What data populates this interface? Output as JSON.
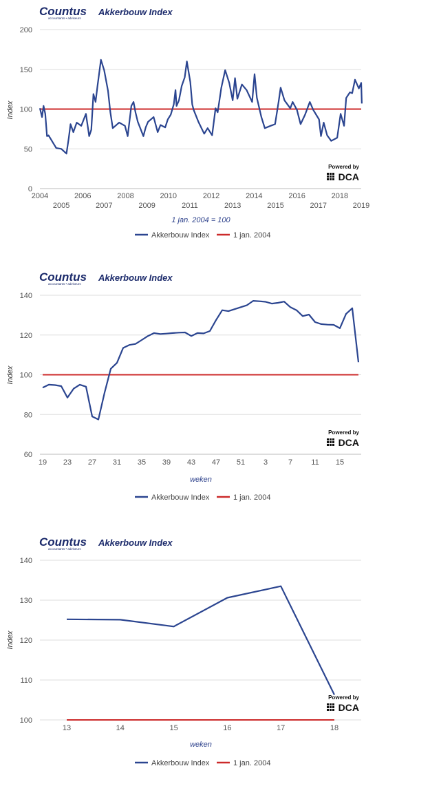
{
  "colors": {
    "series": "#2b4590",
    "baseline": "#cc2a2a",
    "grid": "#dedede",
    "brand": "#1b2a6b"
  },
  "brand": {
    "logo_text": "Countus",
    "logo_tagline": "accountants • adviseurs",
    "powered_by": "Powered by",
    "powered_logo": "DCA"
  },
  "chart_data": [
    {
      "type": "line",
      "title": "Akkerbouw Index",
      "ylabel": "Index",
      "xlabel": "",
      "note": "1 jan. 2004 = 100",
      "ylim": [
        0,
        200
      ],
      "yticks": [
        "0",
        "50",
        "100",
        "150",
        "200"
      ],
      "ytick_values": [
        0,
        50,
        100,
        150,
        200
      ],
      "xlim": [
        2004,
        2019
      ],
      "xticks": [
        "2004",
        "2005",
        "2006",
        "2007",
        "2008",
        "2009",
        "2010",
        "2011",
        "2012",
        "2013",
        "2014",
        "2015",
        "2016",
        "2017",
        "2018",
        "2019"
      ],
      "legend": [
        "Akkerbouw Index",
        "1 jan. 2004"
      ],
      "legend_position": "bottom",
      "baseline": 100,
      "series": [
        {
          "name": "Akkerbouw Index",
          "x": [
            2004.0,
            2004.1,
            2004.17,
            2004.25,
            2004.33,
            2004.4,
            2004.76,
            2005.0,
            2005.24,
            2005.35,
            2005.43,
            2005.56,
            2005.72,
            2005.93,
            2006.15,
            2006.3,
            2006.4,
            2006.5,
            2006.6,
            2006.69,
            2006.85,
            2007.0,
            2007.18,
            2007.29,
            2007.4,
            2007.7,
            2007.97,
            2008.1,
            2008.27,
            2008.37,
            2008.46,
            2008.57,
            2008.83,
            2008.94,
            2009.05,
            2009.31,
            2009.5,
            2009.63,
            2009.85,
            2009.97,
            2010.11,
            2010.25,
            2010.33,
            2010.38,
            2010.49,
            2010.62,
            2010.76,
            2010.86,
            2011.02,
            2011.11,
            2011.18,
            2011.4,
            2011.67,
            2011.83,
            2012.04,
            2012.2,
            2012.3,
            2012.47,
            2012.65,
            2012.84,
            2013.0,
            2013.11,
            2013.22,
            2013.43,
            2013.65,
            2013.91,
            2014.02,
            2014.13,
            2014.34,
            2014.5,
            2014.77,
            2014.98,
            2015.15,
            2015.24,
            2015.42,
            2015.69,
            2015.8,
            2016.0,
            2016.17,
            2016.38,
            2016.6,
            2016.76,
            2017.03,
            2017.12,
            2017.25,
            2017.41,
            2017.6,
            2017.88,
            2018.04,
            2018.2,
            2018.3,
            2018.47,
            2018.58,
            2018.71,
            2018.89,
            2019.0,
            2019.03
          ],
          "values": [
            101,
            90,
            104,
            94,
            66,
            67,
            51,
            50,
            44,
            64,
            81,
            71,
            83,
            79,
            94,
            66,
            74,
            119,
            109,
            129,
            162,
            149,
            123,
            96,
            76,
            83,
            79,
            66,
            104,
            109,
            96,
            84,
            66,
            77,
            84,
            90,
            71,
            80,
            77,
            87,
            93,
            106,
            124,
            104,
            111,
            129,
            140,
            160,
            134,
            106,
            99,
            84,
            69,
            76,
            67,
            101,
            96,
            127,
            149,
            133,
            111,
            139,
            113,
            131,
            124,
            109,
            144,
            114,
            90,
            76,
            79,
            81,
            110,
            127,
            111,
            101,
            109,
            99,
            81,
            93,
            109,
            99,
            87,
            66,
            83,
            67,
            60,
            64,
            94,
            79,
            114,
            121,
            120,
            137,
            126,
            133,
            107
          ]
        }
      ]
    },
    {
      "type": "line",
      "title": "Akkerbouw Index",
      "ylabel": "Index",
      "xlabel": "weken",
      "ylim": [
        60,
        140
      ],
      "yticks": [
        "60",
        "80",
        "100",
        "120",
        "140"
      ],
      "ytick_values": [
        60,
        80,
        100,
        120,
        140
      ],
      "xticks": [
        "19",
        "23",
        "27",
        "31",
        "35",
        "39",
        "43",
        "47",
        "51",
        "3",
        "7",
        "11",
        "15"
      ],
      "legend": [
        "Akkerbouw Index",
        "1 jan. 2004"
      ],
      "legend_position": "bottom",
      "baseline": 100,
      "categories": [
        "19",
        "20",
        "21",
        "22",
        "23",
        "24",
        "25",
        "26",
        "27",
        "28",
        "29",
        "30",
        "31",
        "32",
        "33",
        "34",
        "35",
        "36",
        "37",
        "38",
        "39",
        "40",
        "41",
        "42",
        "43",
        "44",
        "45",
        "46",
        "47",
        "48",
        "49",
        "50",
        "51",
        "52",
        "1",
        "2",
        "3",
        "4",
        "5",
        "6",
        "7",
        "8",
        "9",
        "10",
        "11",
        "12",
        "13",
        "14",
        "15",
        "16",
        "17",
        "18"
      ],
      "series": [
        {
          "name": "Akkerbouw Index",
          "values": [
            93.5,
            95,
            94.8,
            94.3,
            88.5,
            93,
            95,
            94,
            79,
            77.5,
            91,
            103,
            106,
            113.5,
            115,
            115.5,
            117.5,
            119.5,
            121,
            120.5,
            120.7,
            121,
            121.2,
            121.3,
            119.5,
            121,
            120.8,
            122,
            127.5,
            132.5,
            132,
            133,
            134,
            135,
            137.2,
            137,
            136.7,
            135.8,
            136.2,
            136.8,
            134,
            132.5,
            129.5,
            130.3,
            126.5,
            125.5,
            125.2,
            125.1,
            123.4,
            130.6,
            133.5,
            106.3
          ]
        }
      ]
    },
    {
      "type": "line",
      "title": "Akkerbouw Index",
      "ylabel": "Index",
      "xlabel": "weken",
      "ylim": [
        100,
        140
      ],
      "yticks": [
        "100",
        "110",
        "120",
        "130",
        "140"
      ],
      "ytick_values": [
        100,
        110,
        120,
        130,
        140
      ],
      "xticks": [
        "13",
        "14",
        "15",
        "16",
        "17",
        "18"
      ],
      "legend": [
        "Akkerbouw Index",
        "1 jan. 2004"
      ],
      "legend_position": "bottom",
      "baseline": 100,
      "categories": [
        "13",
        "14",
        "15",
        "16",
        "17",
        "18"
      ],
      "series": [
        {
          "name": "Akkerbouw Index",
          "values": [
            125.2,
            125.1,
            123.4,
            130.6,
            133.5,
            106.3
          ]
        }
      ]
    }
  ]
}
